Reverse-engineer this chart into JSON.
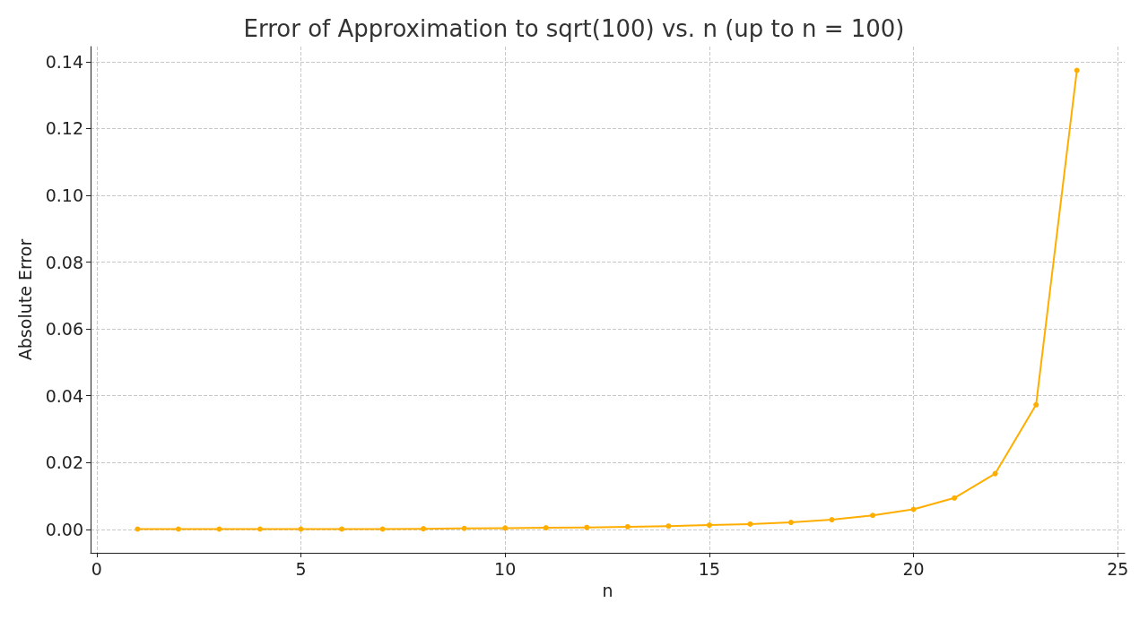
{
  "chart_data": {
    "type": "line",
    "title": "Error of Approximation to sqrt(100) vs. n (up to n = 100)",
    "xlabel": "n",
    "ylabel": "Absolute Error",
    "x": [
      1,
      2,
      3,
      4,
      5,
      6,
      7,
      8,
      9,
      10,
      11,
      12,
      13,
      14,
      15,
      16,
      17,
      18,
      19,
      20,
      21,
      22,
      23,
      24
    ],
    "series": [
      {
        "color": "#ffae00",
        "values": [
          0.0001,
          0.0001,
          0.0001,
          0.0001,
          0.0001,
          0.0001,
          0.0001,
          0.0002,
          0.0003,
          0.0004,
          0.0005,
          0.0006,
          0.0008,
          0.001,
          0.0013,
          0.0016,
          0.0021,
          0.0029,
          0.0042,
          0.006,
          0.0094,
          0.0167,
          0.0373,
          0.1374
        ]
      }
    ],
    "xlim": [
      -0.15,
      25.17
    ],
    "xticks": [
      0,
      5,
      10,
      15,
      20,
      25
    ],
    "ylim": [
      -0.007,
      0.1445
    ],
    "yticks": [
      {
        "value": 0,
        "label": "0.00"
      },
      0.02,
      0.04,
      0.06,
      0.08,
      {
        "value": 0.1,
        "label": "0.10"
      },
      0.12,
      0.14
    ],
    "grid": true,
    "marker": "circle",
    "line_style": "solid"
  }
}
